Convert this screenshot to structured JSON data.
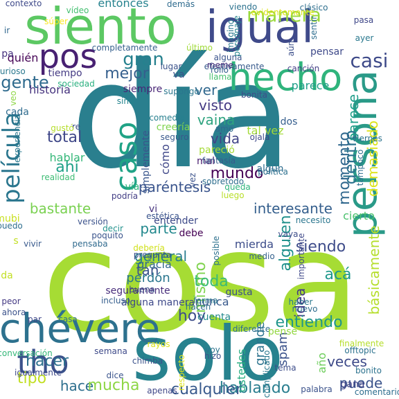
{
  "words": [
    {
      "text": "día",
      "color": "#2a7f8e",
      "vertical": false
    },
    {
      "text": "cosa",
      "color": "#a6dc34",
      "vertical": false
    },
    {
      "text": "solo",
      "color": "#27828e",
      "vertical": false
    },
    {
      "text": "siento",
      "color": "#5cc863",
      "vertical": false
    },
    {
      "text": "igual",
      "color": "#3f4a8a",
      "vertical": false
    },
    {
      "text": "persona",
      "color": "#2a9a88",
      "vertical": true
    },
    {
      "text": "hecho",
      "color": "#2fb47c",
      "vertical": false
    },
    {
      "text": "chévere",
      "color": "#2d718e",
      "vertical": false
    },
    {
      "text": "tho",
      "color": "#3b528b",
      "vertical": false
    },
    {
      "text": "pos",
      "color": "#482172",
      "vertical": false
    },
    {
      "text": "caso",
      "color": "#20a386",
      "vertical": true
    },
    {
      "text": "película",
      "color": "#2a768e",
      "vertical": true
    },
    {
      "text": "manera",
      "color": "#9ad93c",
      "vertical": false
    },
    {
      "text": "gran",
      "color": "#26818e",
      "vertical": false
    },
    {
      "text": "gente",
      "color": "#2f6b8e",
      "vertical": false
    },
    {
      "text": "mejor",
      "color": "#355f8d",
      "vertical": false
    },
    {
      "text": "casi",
      "color": "#3e4a89",
      "vertical": false
    },
    {
      "text": "ver",
      "color": "#31688e",
      "vertical": false
    },
    {
      "text": "visto",
      "color": "#443a83",
      "vertical": false
    },
    {
      "text": "vaina",
      "color": "#2ea37f",
      "vertical": false
    },
    {
      "text": "vida",
      "color": "#414487",
      "vertical": false
    },
    {
      "text": "total",
      "color": "#3f4788",
      "vertical": false
    },
    {
      "text": "ahí",
      "color": "#1fa188",
      "vertical": false
    },
    {
      "text": "hablar",
      "color": "#35b779",
      "vertical": false
    },
    {
      "text": "mundo",
      "color": "#440154",
      "vertical": false
    },
    {
      "text": "paréntesis",
      "color": "#3a548c",
      "vertical": false
    },
    {
      "text": "interesante",
      "color": "#355f8d",
      "vertical": false
    },
    {
      "text": "bastante",
      "color": "#7ad151",
      "vertical": false
    },
    {
      "text": "parte",
      "color": "#23898e",
      "vertical": false
    },
    {
      "text": "general",
      "color": "#287c8e",
      "vertical": false
    },
    {
      "text": "tan",
      "color": "#3b528b",
      "vertical": false
    },
    {
      "text": "mismo",
      "color": "#7fd34e",
      "vertical": true
    },
    {
      "text": "toda",
      "color": "#3bbb75",
      "vertical": false
    },
    {
      "text": "siendo",
      "color": "#3e4c8a",
      "vertical": false
    },
    {
      "text": "acá",
      "color": "#1f988b",
      "vertical": false
    },
    {
      "text": "alguien",
      "color": "#21918c",
      "vertical": true
    },
    {
      "text": "idea",
      "color": "#443983",
      "vertical": true
    },
    {
      "text": "básicamente",
      "color": "#b5de2b",
      "vertical": true
    },
    {
      "text": "dentro",
      "color": "#2c738e",
      "vertical": true
    },
    {
      "text": "momento",
      "color": "#31688e",
      "vertical": true
    },
    {
      "text": "parece",
      "color": "#1f9e89",
      "vertical": true
    },
    {
      "text": "demasiado",
      "color": "#dde318",
      "vertical": true
    },
    {
      "text": "hoy",
      "color": "#3d4d8a",
      "vertical": false
    },
    {
      "text": "entiendo",
      "color": "#1f958b",
      "vertical": false
    },
    {
      "text": "hacer",
      "color": "#2d708e",
      "vertical": false
    },
    {
      "text": "tipo",
      "color": "#c2df23",
      "vertical": false
    },
    {
      "text": "hace",
      "color": "#2e6f8e",
      "vertical": false
    },
    {
      "text": "mucha",
      "color": "#8ed645",
      "vertical": false
    },
    {
      "text": "hablando",
      "color": "#287d8e",
      "vertical": false
    },
    {
      "text": "puede",
      "color": "#3a538b",
      "vertical": false
    },
    {
      "text": "veces",
      "color": "#3e4a89",
      "vertical": false
    },
    {
      "text": "cualquier",
      "color": "#38598c",
      "vertical": false
    },
    {
      "text": "perdón",
      "color": "#2a768e",
      "vertical": false
    },
    {
      "text": "gracia",
      "color": "#31688e",
      "vertical": false
    },
    {
      "text": "seguramente",
      "color": "#472d7b",
      "vertical": false
    },
    {
      "text": "alguna manera",
      "color": "#3e4989",
      "vertical": false
    },
    {
      "text": "nunca",
      "color": "#38598c",
      "vertical": false
    },
    {
      "text": "cuenta",
      "color": "#23898e",
      "vertical": false
    },
    {
      "text": "grande",
      "color": "#2c738e",
      "vertical": true
    },
    {
      "text": "spam",
      "color": "#3b528b",
      "vertical": true
    },
    {
      "text": "año",
      "color": "#6ccd5a",
      "vertical": true
    },
    {
      "text": "bonito",
      "color": "#2c728e",
      "vertical": false
    },
    {
      "text": "ustedes",
      "color": "#27ad81",
      "vertical": true
    },
    {
      "text": "gana",
      "color": "#404387",
      "vertical": false
    },
    {
      "text": "entonces",
      "color": "#26828e",
      "vertical": false
    },
    {
      "text": "historia",
      "color": "#46337e",
      "vertical": false
    },
    {
      "text": "tiempo",
      "color": "#443a83",
      "vertical": false
    },
    {
      "text": "quién",
      "color": "#440154",
      "vertical": false
    },
    {
      "text": "pa",
      "color": "#46327e",
      "vertical": false
    },
    {
      "text": "cada",
      "color": "#2f6c8e",
      "vertical": false
    },
    {
      "text": "va",
      "color": "#3b528b",
      "vertical": false
    },
    {
      "text": "siempre",
      "color": "#482576",
      "vertical": false
    },
    {
      "text": "cómo",
      "color": "#3f4788",
      "vertical": true
    },
    {
      "text": "tal vez",
      "color": "#a2da37",
      "vertical": false
    },
    {
      "text": "dos",
      "color": "#355e8d",
      "vertical": false
    },
    {
      "text": "pensar",
      "color": "#3e4989",
      "vertical": false
    },
    {
      "text": "canción",
      "color": "#433e85",
      "vertical": false
    },
    {
      "text": "parece",
      "color": "#1f9e89",
      "vertical": false
    },
    {
      "text": "pareció",
      "color": "#a5db36",
      "vertical": false
    },
    {
      "text": "mal",
      "color": "#481c6e",
      "vertical": false
    },
    {
      "text": "algún",
      "color": "#2f6c8e",
      "vertical": false
    },
    {
      "text": "entender",
      "color": "#3e4a89",
      "vertical": false
    },
    {
      "text": "debe",
      "color": "#440154",
      "vertical": false
    },
    {
      "text": "mierda",
      "color": "#3d4d8a",
      "vertical": false
    },
    {
      "text": "gusta",
      "color": "#3c4f8a",
      "vertical": false
    },
    {
      "text": "cierto",
      "color": "#4ac16d",
      "vertical": false
    },
    {
      "text": "vi",
      "color": "#46337e",
      "vertical": false
    },
    {
      "text": "vía",
      "color": "#2fb47c",
      "vertical": false
    },
    {
      "text": "sobretodo",
      "color": "#2e6e8e",
      "vertical": false
    },
    {
      "text": "luego",
      "color": "#b8de29",
      "vertical": false
    },
    {
      "text": "simplemente",
      "color": "#39568c",
      "vertical": true
    },
    {
      "text": "contexto",
      "color": "#3e4989",
      "vertical": false
    },
    {
      "text": "vídeo",
      "color": "#44bf70",
      "vertical": false
    },
    {
      "text": "demás",
      "color": "#2f6b8e",
      "vertical": false
    },
    {
      "text": "completamente",
      "color": "#355f8d",
      "vertical": false
    },
    {
      "text": "último",
      "color": "#a0da39",
      "vertical": false
    },
    {
      "text": "efectivamente",
      "color": "#375a8c",
      "vertical": false
    },
    {
      "text": "evidentemente",
      "color": "#dde318",
      "vertical": false
    },
    {
      "text": "clásico",
      "color": "#2e6f8e",
      "vertical": false
    },
    {
      "text": "viendo",
      "color": "#2c728e",
      "vertical": false
    },
    {
      "text": "pasa",
      "color": "#3f4788",
      "vertical": false
    },
    {
      "text": "ayer",
      "color": "#2a788e",
      "vertical": false
    },
    {
      "text": "súper",
      "color": "#fde725",
      "vertical": false
    },
    {
      "text": "ir",
      "color": "#31688e",
      "vertical": false
    },
    {
      "text": "curioso",
      "color": "#2a788e",
      "vertical": false
    },
    {
      "text": "sociedad",
      "color": "#2ab07f",
      "vertical": false
    },
    {
      "text": "lugar",
      "color": "#3b528b",
      "vertical": false
    },
    {
      "text": "rollo",
      "color": "#355f8d",
      "vertical": false
    },
    {
      "text": "llama",
      "color": "#46c06f",
      "vertical": false
    },
    {
      "text": "meme",
      "color": "#472c7a",
      "vertical": false
    },
    {
      "text": "alguna",
      "color": "#3a548c",
      "vertical": false
    },
    {
      "text": "supongo",
      "color": "#2a768e",
      "vertical": false
    },
    {
      "text": "sino",
      "color": "#25848e",
      "vertical": false
    },
    {
      "text": "bonita",
      "color": "#3d4e8a",
      "vertical": false
    },
    {
      "text": "comedia",
      "color": "#277f8e",
      "vertical": false
    },
    {
      "text": "creería",
      "color": "#7fd34e",
      "vertical": false
    },
    {
      "text": "seguro",
      "color": "#38598c",
      "vertical": false
    },
    {
      "text": "re",
      "color": "#3c4f8a",
      "vertical": false
    },
    {
      "text": "gustó",
      "color": "#b5de2b",
      "vertical": false
    },
    {
      "text": "viernes",
      "color": "#2c728e",
      "vertical": false
    },
    {
      "text": "amo",
      "color": "#31688e",
      "vertical": false
    },
    {
      "text": "ojalá",
      "color": "#3e4989",
      "vertical": false
    },
    {
      "text": "fantasía",
      "color": "#375b8d",
      "vertical": false
    },
    {
      "text": "política",
      "color": "#2d708e",
      "vertical": false
    },
    {
      "text": "realidad",
      "color": "#3dbc74",
      "vertical": false
    },
    {
      "text": "tampoco",
      "color": "#2e6e8e",
      "vertical": true
    },
    {
      "text": "queda",
      "color": "#2fb47c",
      "vertical": false
    },
    {
      "text": "podría",
      "color": "#433e85",
      "vertical": false
    },
    {
      "text": "estética",
      "color": "#3a548c",
      "vertical": false
    },
    {
      "text": "necesito",
      "color": "#2a768e",
      "vertical": false
    },
    {
      "text": "mubi",
      "color": "#c8e020",
      "vertical": false
    },
    {
      "text": "puedo",
      "color": "#2e6e8e",
      "vertical": false
    },
    {
      "text": "versión",
      "color": "#3b528b",
      "vertical": false
    },
    {
      "text": "decir",
      "color": "#21918c",
      "vertical": false
    },
    {
      "text": "poquito",
      "color": "#3a548c",
      "vertical": false
    },
    {
      "text": "vivir",
      "color": "#38598c",
      "vertical": false
    },
    {
      "text": "pensaba",
      "color": "#306a8e",
      "vertical": false
    },
    {
      "text": "debería",
      "color": "#d0e11c",
      "vertical": false
    },
    {
      "text": "pregunta",
      "color": "#3b528b",
      "vertical": false
    },
    {
      "text": "posible",
      "color": "#2d718e",
      "vertical": true
    },
    {
      "text": "medio",
      "color": "#34618d",
      "vertical": false
    },
    {
      "text": "vaya",
      "color": "#3d4d8a",
      "vertical": false
    },
    {
      "text": "importante",
      "color": "#3f4889",
      "vertical": true
    },
    {
      "text": "haber",
      "color": "#2a788e",
      "vertical": false
    },
    {
      "text": "nuevo",
      "color": "#2e6e8e",
      "vertical": false
    },
    {
      "text": "buena",
      "color": "#3c4f8a",
      "vertical": false
    },
    {
      "text": "incluso",
      "color": "#355e8d",
      "vertical": false
    },
    {
      "text": "peor",
      "color": "#443983",
      "vertical": false
    },
    {
      "text": "ahora",
      "color": "#3b528b",
      "vertical": false
    },
    {
      "text": "da",
      "color": "#c2df23",
      "vertical": false
    },
    {
      "text": "forma",
      "color": "#2a788e",
      "vertical": false
    },
    {
      "text": "hacen",
      "color": "#2e6e8e",
      "vertical": false
    },
    {
      "text": "par",
      "color": "#3f4889",
      "vertical": false
    },
    {
      "text": "casa",
      "color": "#2e6f8e",
      "vertical": false
    },
    {
      "text": "rayos",
      "color": "#dde318",
      "vertical": false
    },
    {
      "text": "diferente",
      "color": "#2e6e8e",
      "vertical": false
    },
    {
      "text": "voy",
      "color": "#2c738e",
      "vertical": false
    },
    {
      "text": "hizo",
      "color": "#3b528b",
      "vertical": false
    },
    {
      "text": "pensé",
      "color": "#93d741",
      "vertical": false
    },
    {
      "text": "finalmente",
      "color": "#b5de2b",
      "vertical": false
    },
    {
      "text": "offtopic",
      "color": "#2c728e",
      "vertical": false
    },
    {
      "text": "conversación",
      "color": "#35b779",
      "vertical": false
    },
    {
      "text": "semana",
      "color": "#3e4a89",
      "vertical": false
    },
    {
      "text": "chimba",
      "color": "#3b528b",
      "vertical": false
    },
    {
      "text": "respecto",
      "color": "#dde318",
      "vertical": true
    },
    {
      "text": "complicado",
      "color": "#2a788e",
      "vertical": true
    },
    {
      "text": "tema",
      "color": "#3d4d8a",
      "vertical": false
    },
    {
      "text": "igualmente",
      "color": "#3e4989",
      "vertical": false
    },
    {
      "text": "dice",
      "color": "#3a548c",
      "vertical": false
    },
    {
      "text": "apenas",
      "color": "#3f4788",
      "vertical": false
    },
    {
      "text": "palabra",
      "color": "#3b528b",
      "vertical": false
    },
    {
      "text": "comentario",
      "color": "#2e6e8e",
      "vertical": false
    },
    {
      "text": "sentir",
      "color": "#2e6e8e",
      "vertical": true
    },
    {
      "text": "imagino",
      "color": "#2a788e",
      "vertical": true
    },
    {
      "text": "personaje",
      "color": "#25848e",
      "vertical": true
    },
    {
      "text": "aún",
      "color": "#3c4f8a",
      "vertical": true
    },
    {
      "text": "veo",
      "color": "#8ed645",
      "vertical": true
    },
    {
      "text": "experiencia",
      "color": "#2a788e",
      "vertical": true
    },
    {
      "text": "vez",
      "color": "#3b528b",
      "vertical": true
    },
    {
      "text": "s",
      "color": "#c2df23",
      "vertical": false
    }
  ]
}
